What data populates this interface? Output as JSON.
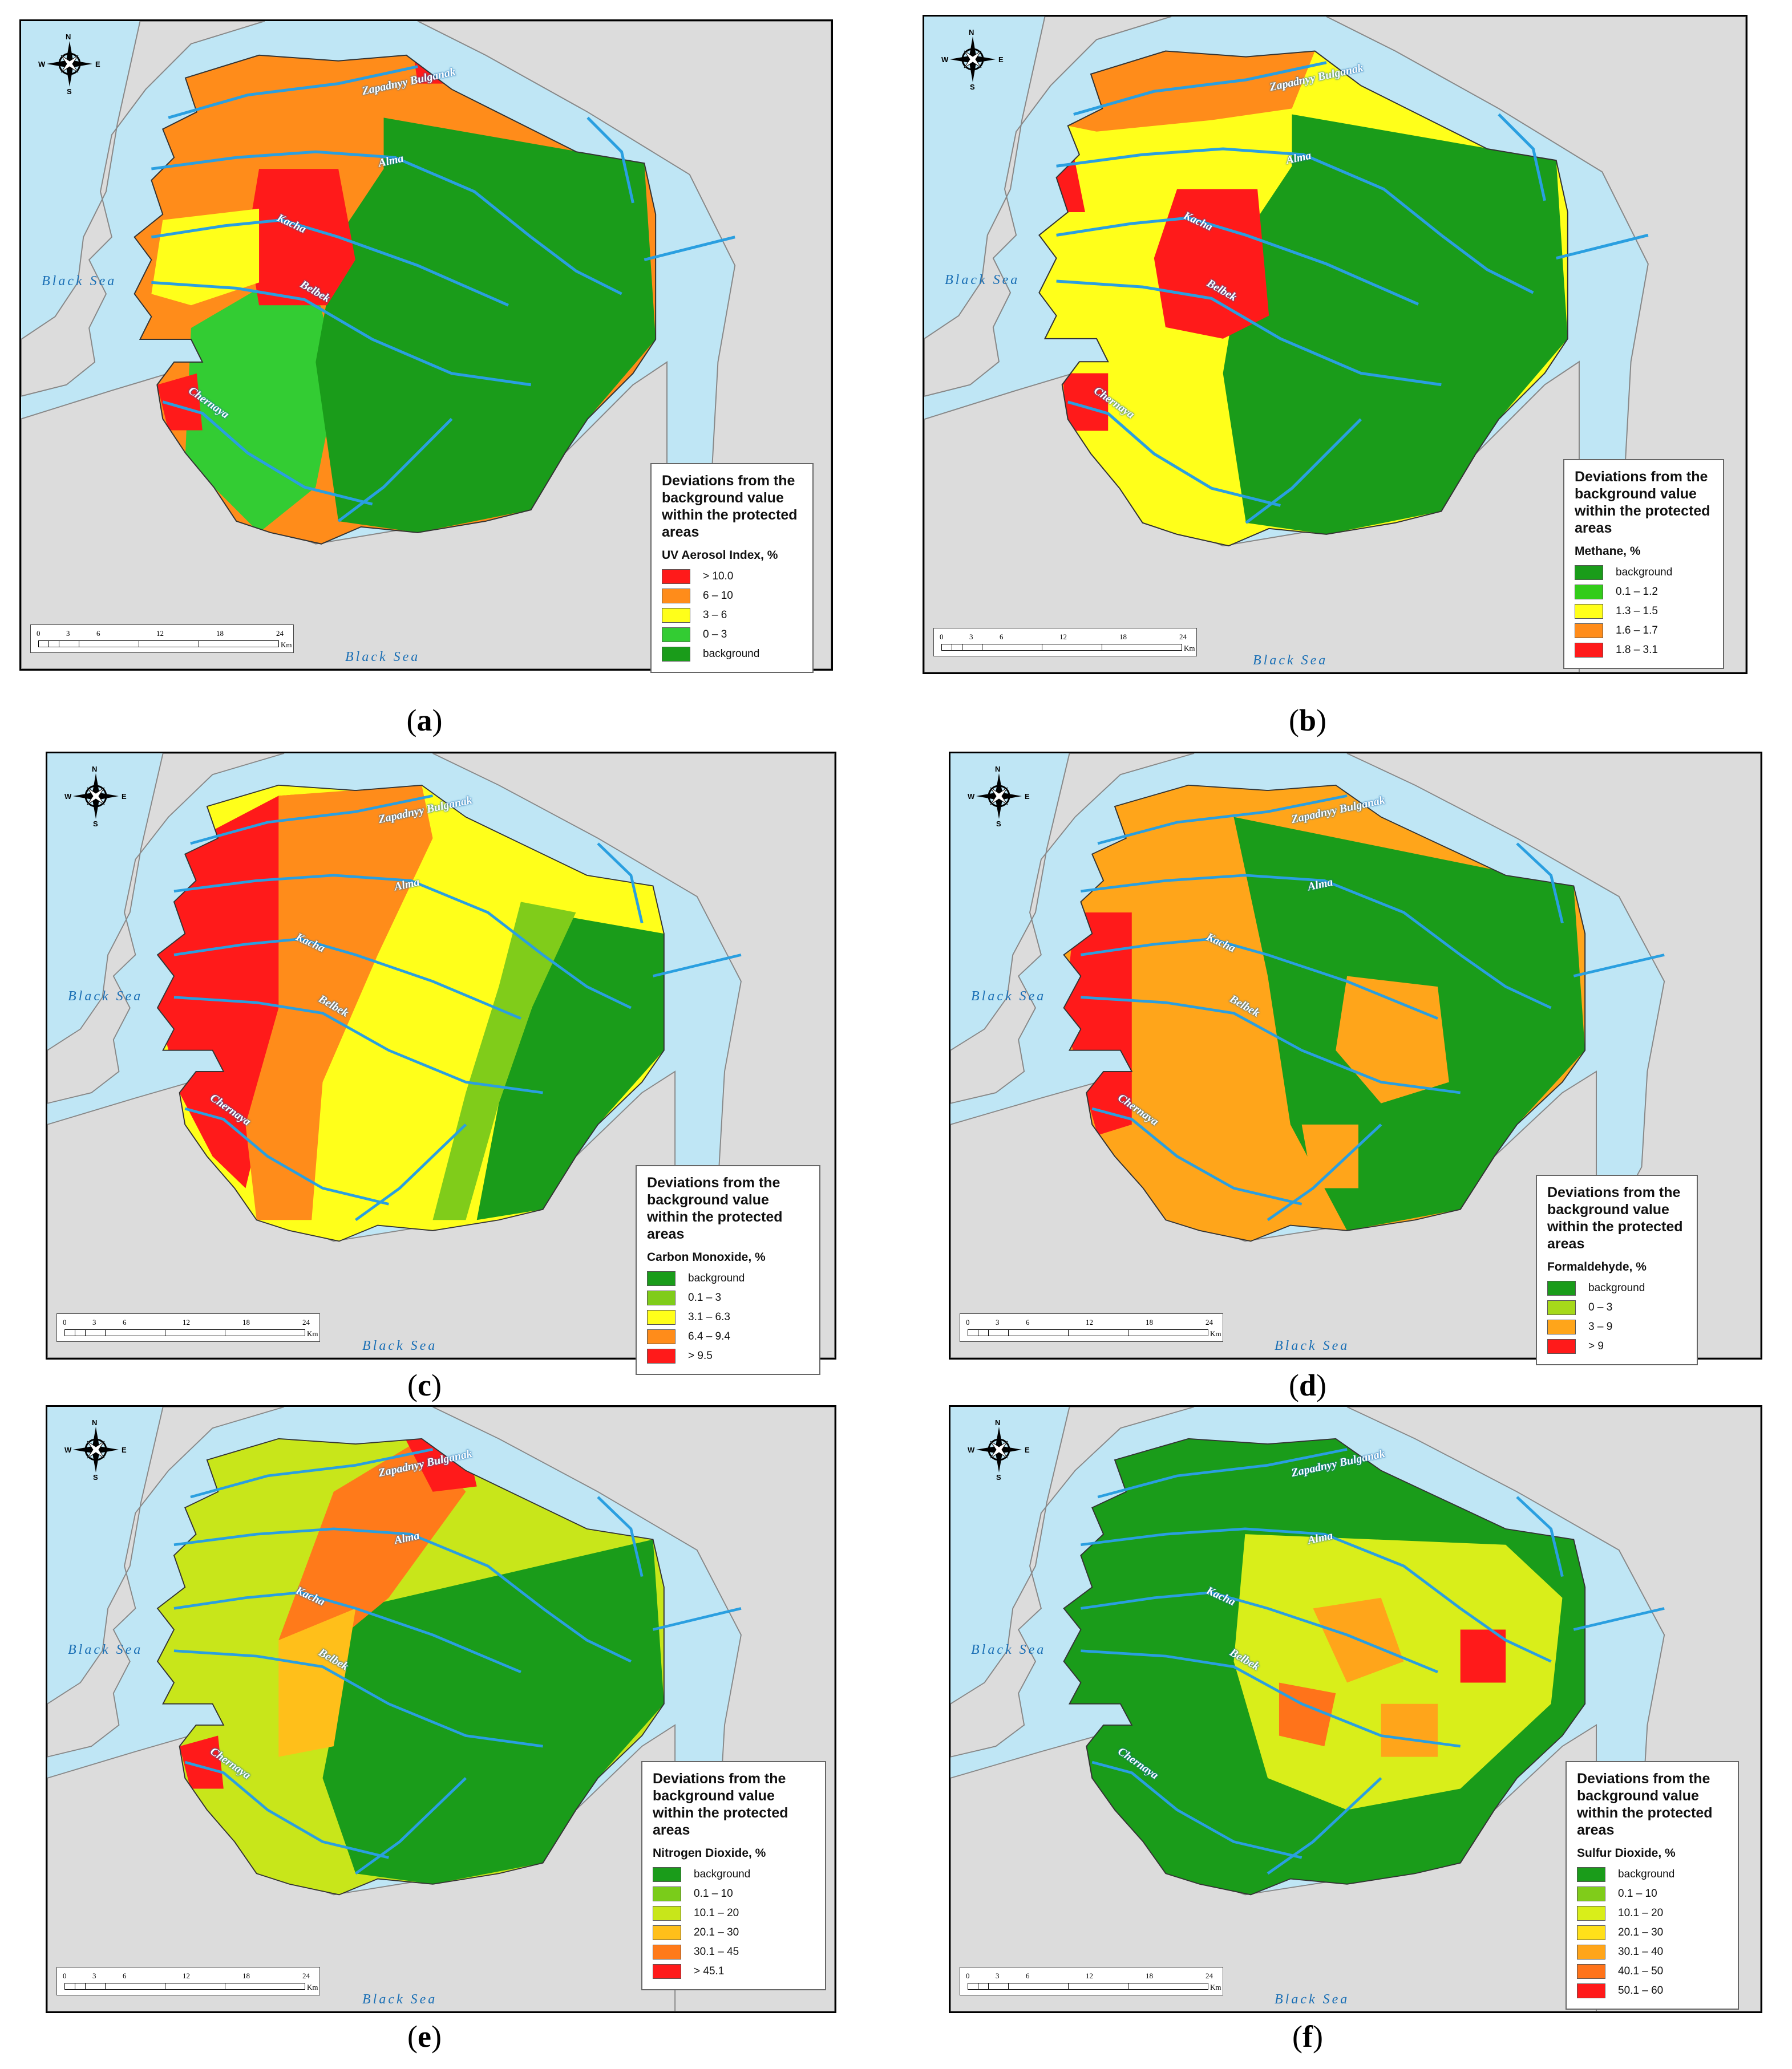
{
  "map_labels": {
    "black_sea": "Black Sea",
    "rivers": [
      "Zapadnyy Bulganak",
      "Alma",
      "Kacha",
      "Belbek",
      "Chernaya"
    ],
    "compass": {
      "n": "N",
      "s": "S",
      "e": "E",
      "w": "W"
    },
    "scale": {
      "ticks": [
        "0",
        "3",
        "6",
        "12",
        "18",
        "24"
      ],
      "unit": "Km"
    }
  },
  "panels": [
    {
      "caption_letter": "a",
      "legend_title": "Deviations from the background value within the protected areas",
      "indicator": "UV Aerosol Index, %",
      "classes": [
        {
          "label": "> 10.0",
          "color": "#ff1a1a"
        },
        {
          "label": "6 – 10",
          "color": "#ff8c1a"
        },
        {
          "label": "3 – 6",
          "color": "#ffff1a"
        },
        {
          "label": "0 – 3",
          "color": "#33cc33"
        },
        {
          "label": "background",
          "color": "#1a9c1a"
        }
      ]
    },
    {
      "caption_letter": "b",
      "legend_title": "Deviations from the background value within the protected areas",
      "indicator": "Methane, %",
      "classes": [
        {
          "label": "background",
          "color": "#1a9c1a"
        },
        {
          "label": "0.1 – 1.2",
          "color": "#33cc1a"
        },
        {
          "label": "1.3 – 1.5",
          "color": "#ffff1a"
        },
        {
          "label": "1.6 – 1.7",
          "color": "#ff8c1a"
        },
        {
          "label": "1.8 – 3.1",
          "color": "#ff1a1a"
        }
      ]
    },
    {
      "caption_letter": "c",
      "legend_title": "Deviations from the background value within the protected areas",
      "indicator": "Carbon Monoxide, %",
      "classes": [
        {
          "label": "background",
          "color": "#1a9c1a"
        },
        {
          "label": "0.1 – 3",
          "color": "#80cc1a"
        },
        {
          "label": "3.1 – 6.3",
          "color": "#ffff1a"
        },
        {
          "label": "6.4 – 9.4",
          "color": "#ff8c1a"
        },
        {
          "label": "> 9.5",
          "color": "#ff1a1a"
        }
      ]
    },
    {
      "caption_letter": "d",
      "legend_title": "Deviations from the background value within the protected areas",
      "indicator": "Formaldehyde, %",
      "classes": [
        {
          "label": "background",
          "color": "#1a9c1a"
        },
        {
          "label": "0 – 3",
          "color": "#a6d91a"
        },
        {
          "label": "3 – 9",
          "color": "#ffa51a"
        },
        {
          "label": "> 9",
          "color": "#ff1a1a"
        }
      ]
    },
    {
      "caption_letter": "e",
      "legend_title": "Deviations from the background value within the protected areas",
      "indicator": "Nitrogen Dioxide, %",
      "classes": [
        {
          "label": "background",
          "color": "#1a9c1a"
        },
        {
          "label": "0.1 – 10",
          "color": "#7acc1a"
        },
        {
          "label": "10.1 – 20",
          "color": "#c8e61a"
        },
        {
          "label": "20.1 – 30",
          "color": "#ffbf1a"
        },
        {
          "label": "30.1 – 45",
          "color": "#ff7a1a"
        },
        {
          "label": "> 45.1",
          "color": "#ff1a1a"
        }
      ]
    },
    {
      "caption_letter": "f",
      "legend_title": "Deviations from the background value within the protected areas",
      "indicator": "Sulfur Dioxide, %",
      "classes": [
        {
          "label": "background",
          "color": "#1a9c1a"
        },
        {
          "label": "0.1 – 10",
          "color": "#80cc1a"
        },
        {
          "label": "10.1 – 20",
          "color": "#d9ee1a"
        },
        {
          "label": "20.1 – 30",
          "color": "#ffe01a"
        },
        {
          "label": "30.1 – 40",
          "color": "#ffa51a"
        },
        {
          "label": "40.1 – 50",
          "color": "#ff731a"
        },
        {
          "label": "50.1 – 60",
          "color": "#ff1a1a"
        }
      ]
    }
  ]
}
